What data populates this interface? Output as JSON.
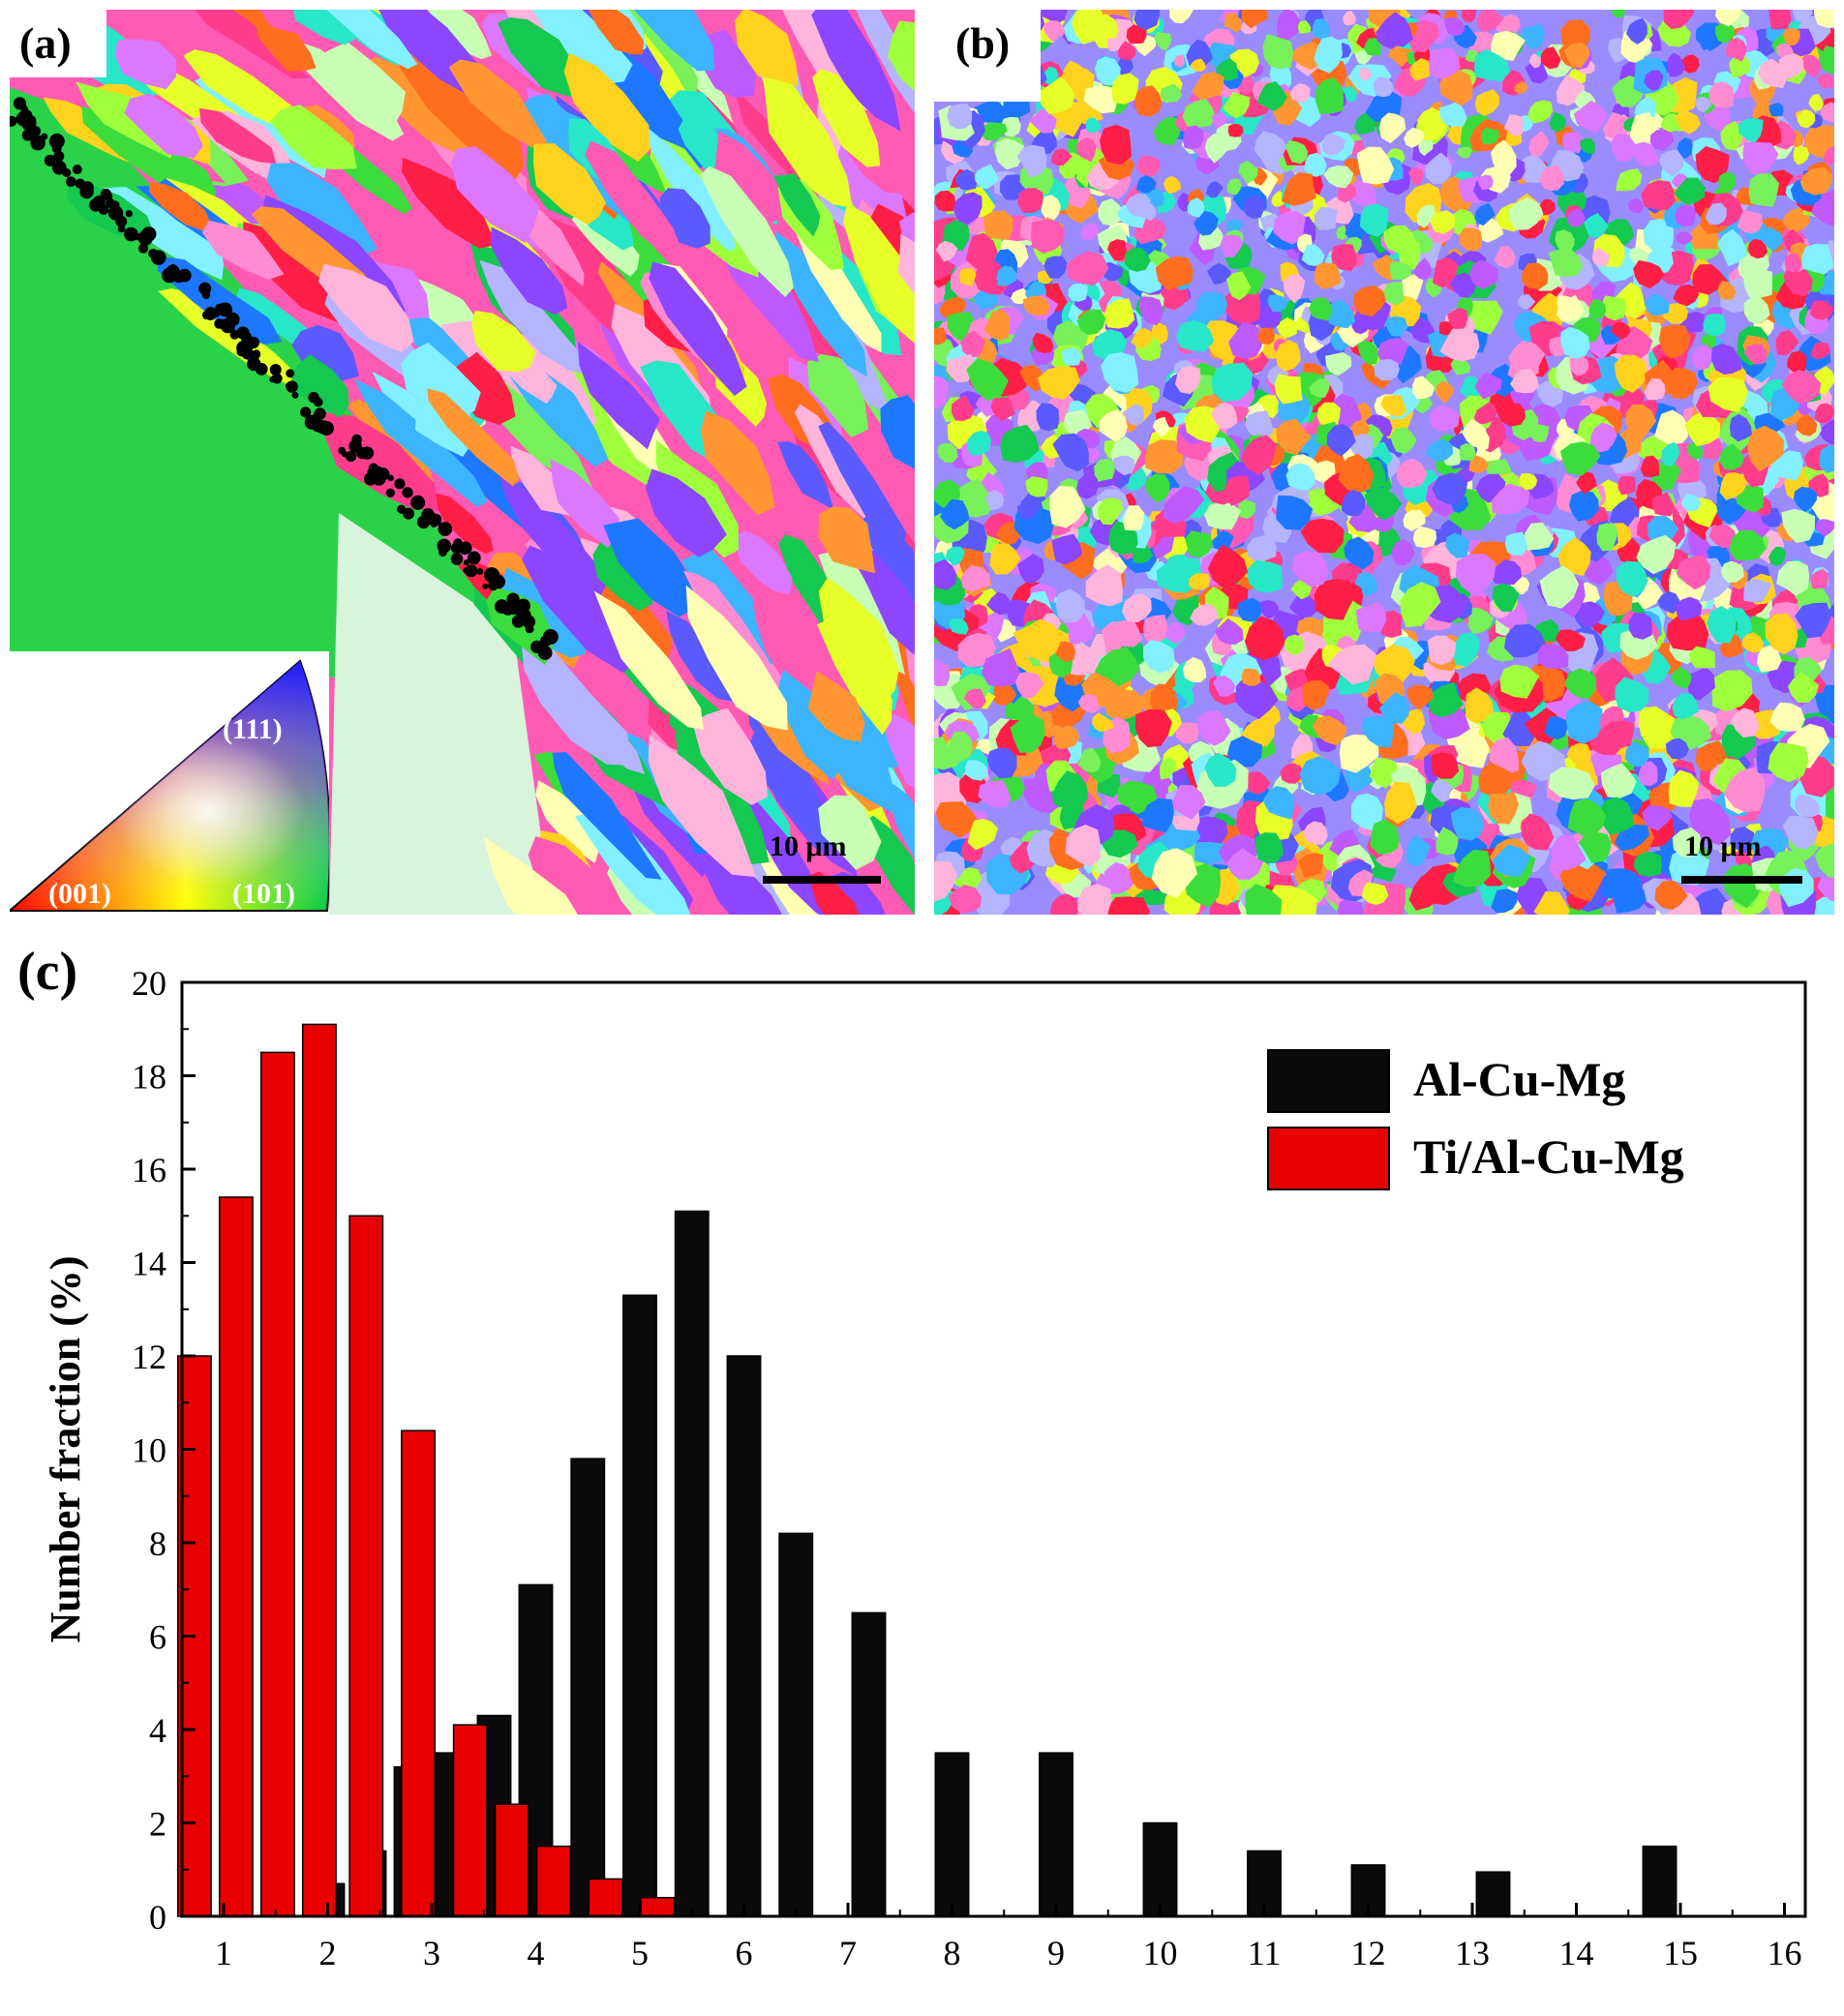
{
  "panels": {
    "a": {
      "label": "(a)",
      "scale_bar": "10 μm",
      "legend_labels": {
        "top": "(111)",
        "left": "(001)",
        "right": "(101)"
      }
    },
    "b": {
      "label": "(b)",
      "scale_bar": "10 μm"
    },
    "c": {
      "label": "(c)"
    }
  },
  "colors": {
    "al_cu_mg": "#0a0a0a",
    "ti_al_cu_mg": "#e80000",
    "ipf_palette": [
      "#ff3c8c",
      "#ff5ab4",
      "#ff8cd2",
      "#ff1e46",
      "#3cdc3c",
      "#78f05a",
      "#14c850",
      "#a0ff3c",
      "#e6ff28",
      "#ffd21e",
      "#ff9632",
      "#ff6e1e",
      "#3cb4ff",
      "#1e78ff",
      "#5a5aff",
      "#8c46ff",
      "#be5aff",
      "#dc78ff",
      "#28e6c8",
      "#82f0ff",
      "#c8ffb4",
      "#ffb4dc",
      "#b4b4ff",
      "#ffffb4"
    ]
  },
  "chart_data": {
    "type": "bar",
    "title": "",
    "xlabel": "",
    "ylabel": "Number fraction (%)",
    "xlim": [
      0.6,
      16.2
    ],
    "ylim": [
      0,
      20
    ],
    "xticks": [
      "1",
      "2",
      "3",
      "4",
      "5",
      "6",
      "7",
      "8",
      "9",
      "10",
      "11",
      "12",
      "13",
      "14",
      "15",
      "16"
    ],
    "yticks": [
      "0",
      "2",
      "4",
      "6",
      "8",
      "10",
      "12",
      "14",
      "16",
      "18",
      "20"
    ],
    "legend_position": "top-right",
    "series": [
      {
        "name": "Al-Cu-Mg",
        "x": [
          2.0,
          2.4,
          2.8,
          3.2,
          3.6,
          4.0,
          4.5,
          5.0,
          5.5,
          6.0,
          6.5,
          7.2,
          8.0,
          9.0,
          10.0,
          11.0,
          12.0,
          13.2,
          14.8,
          15.7
        ],
        "values": [
          0.7,
          1.4,
          3.2,
          3.5,
          4.3,
          7.1,
          9.8,
          13.3,
          15.1,
          12.0,
          8.2,
          6.5,
          3.5,
          3.5,
          2.0,
          1.4,
          1.1,
          0.95,
          1.5,
          0.0
        ]
      },
      {
        "name": "Ti/Al-Cu-Mg",
        "x": [
          0.72,
          1.12,
          1.52,
          1.92,
          2.37,
          2.87,
          3.37,
          3.77,
          4.17,
          4.67,
          5.17
        ],
        "values": [
          12.0,
          15.4,
          18.5,
          19.1,
          15.0,
          10.4,
          4.1,
          2.4,
          1.5,
          0.8,
          0.4
        ]
      }
    ]
  }
}
